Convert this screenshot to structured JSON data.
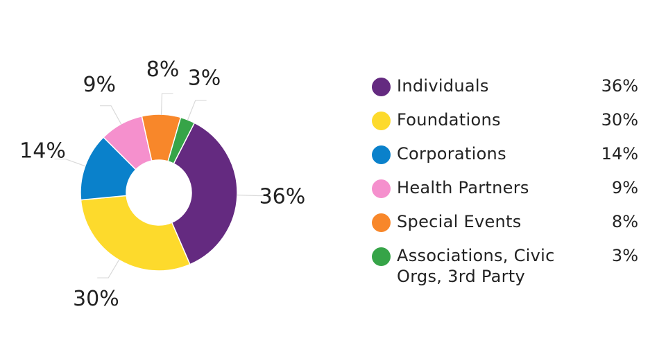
{
  "chart_data": {
    "type": "pie",
    "donut": true,
    "legend_position": "right",
    "slices": [
      {
        "label": "Individuals",
        "value": 36,
        "display": "36%",
        "color": "#642a80"
      },
      {
        "label": "Foundations",
        "value": 30,
        "display": "30%",
        "color": "#fdda2c"
      },
      {
        "label": "Corporations",
        "value": 14,
        "display": "14%",
        "color": "#0a81cb"
      },
      {
        "label": "Health Partners",
        "value": 9,
        "display": "9%",
        "color": "#f590cd"
      },
      {
        "label": "Special Events",
        "value": 8,
        "display": "8%",
        "color": "#f8872a"
      },
      {
        "label": "Associations, Civic Orgs, 3rd Party",
        "value": 3,
        "display": "3%",
        "color": "#36a448"
      }
    ]
  },
  "legend": {
    "items": [
      {
        "label": "Individuals",
        "value": "36%",
        "color": "#642a80"
      },
      {
        "label": "Foundations",
        "value": "30%",
        "color": "#fdda2c"
      },
      {
        "label": "Corporations",
        "value": "14%",
        "color": "#0a81cb"
      },
      {
        "label": "Health Partners",
        "value": "9%",
        "color": "#f590cd"
      },
      {
        "label": "Special Events",
        "value": "8%",
        "color": "#f8872a"
      },
      {
        "label": "Associations, Civic Orgs, 3rd Party",
        "value": "3%",
        "color": "#36a448"
      }
    ]
  }
}
